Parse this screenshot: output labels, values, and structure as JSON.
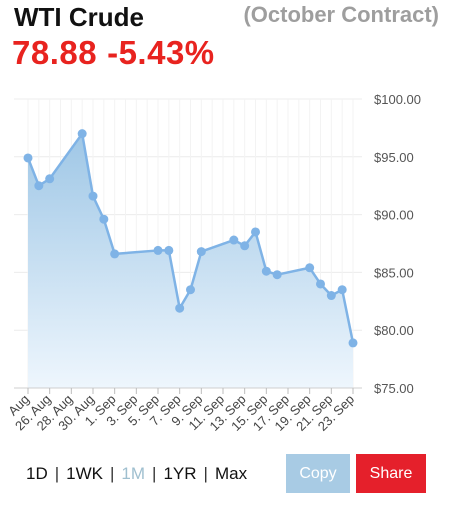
{
  "header": {
    "title": "WTI Crude",
    "subtitle": "(October Contract)",
    "price": "78.88",
    "change": "-5.43%"
  },
  "colors": {
    "accent_red": "#e8231f",
    "line": "#7fb3e6",
    "area_top": "#9fc7e6",
    "area_bottom": "#eef6fd",
    "copy_button": "#a8cbe4",
    "share_button": "#e5202b",
    "range_active": "#9fbfcf"
  },
  "controls": {
    "ranges": [
      "1D",
      "1WK",
      "1M",
      "1YR",
      "Max"
    ],
    "active_range": "1M",
    "copy_label": "Copy",
    "share_label": "Share"
  },
  "chart_data": {
    "type": "area",
    "title": "",
    "xlabel": "",
    "ylabel": "",
    "ylim": [
      75,
      100
    ],
    "yticks": [
      75,
      80,
      85,
      90,
      95,
      100
    ],
    "ytick_labels": [
      "$75.00",
      "$80.00",
      "$85.00",
      "$90.00",
      "$95.00",
      "$100.00"
    ],
    "xlim": [
      "2022-08-24",
      "2022-09-23"
    ],
    "x_tick_labels": [
      "Aug",
      "26. Aug",
      "28. Aug",
      "30. Aug",
      "1. Sep",
      "3. Sep",
      "5. Sep",
      "7. Sep",
      "9. Sep",
      "11. Sep",
      "13. Sep",
      "15. Sep",
      "17. Sep",
      "19. Sep",
      "21. Sep",
      "23. Sep"
    ],
    "grid": true,
    "series": [
      {
        "x": [
          "2022-08-24",
          "2022-08-25",
          "2022-08-26",
          "2022-08-29",
          "2022-08-30",
          "2022-08-31",
          "2022-09-01",
          "2022-09-05",
          "2022-09-06",
          "2022-09-07",
          "2022-09-08",
          "2022-09-09",
          "2022-09-12",
          "2022-09-13",
          "2022-09-14",
          "2022-09-15",
          "2022-09-16",
          "2022-09-19",
          "2022-09-20",
          "2022-09-21",
          "2022-09-22",
          "2022-09-23"
        ],
        "values": [
          94.9,
          92.5,
          93.1,
          97.0,
          91.6,
          89.6,
          86.6,
          86.9,
          86.9,
          81.9,
          83.5,
          86.8,
          87.8,
          87.3,
          88.5,
          85.1,
          84.8,
          85.4,
          84.0,
          83.0,
          83.5,
          78.9
        ]
      }
    ]
  }
}
